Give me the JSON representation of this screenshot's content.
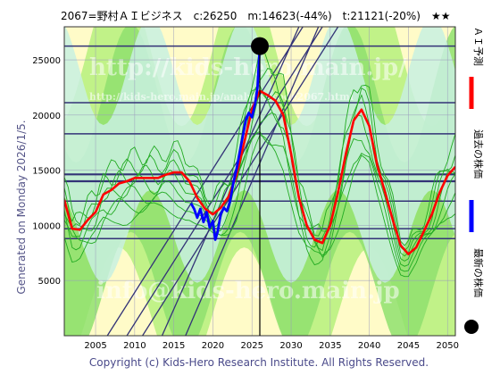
{
  "header": {
    "title": "2067=野村ＡＩビジネス　c:26250　m:14623(-44%)　t:21121(-20%)　★★"
  },
  "side_note": "Generated on Monday 2026/1/5.",
  "footer": "Copyright (c) Kids-Hero Research Institute. All Rights Reserved.",
  "watermarks": [
    "http://kids-hero.main.jp/",
    "http://kids-hero.main.jp/analysis/code2067.html",
    "info@kids-hero.main.jp"
  ],
  "legend": [
    {
      "label": "ＡＩ予測",
      "color": "#ff0000",
      "kind": "line"
    },
    {
      "label": "過去の株価",
      "color": "#0000ff",
      "kind": "line"
    },
    {
      "label": "最新の株価",
      "color": "#000000",
      "kind": "dot"
    }
  ],
  "colors": {
    "plot_bg": "#fffbc8",
    "band_light": "#b6f07c",
    "band_mid": "#8fe06e",
    "band_deep": "#c8f0e0",
    "prediction": "#ff0000",
    "history": "#0000ff",
    "levels": "#333377",
    "diagonals": "#333377",
    "ensemble": "#22aa22"
  },
  "chart_data": {
    "type": "line",
    "xlim": [
      2001,
      2051
    ],
    "ylim": [
      0,
      28000
    ],
    "x_ticks": [
      2005,
      2010,
      2015,
      2020,
      2025,
      2030,
      2035,
      2040,
      2045,
      2050
    ],
    "y_ticks": [
      5000,
      10000,
      15000,
      20000,
      25000
    ],
    "current": {
      "year": 2026.0,
      "price": 26250
    },
    "horizontal_levels": [
      26250,
      21121,
      18300,
      14623,
      14000,
      12200,
      9700,
      8800
    ],
    "diagonal_trendlines": [
      {
        "points": [
          [
            2006.5,
            0
          ],
          [
            2031.5,
            28000
          ]
        ]
      },
      {
        "points": [
          [
            2009.0,
            0
          ],
          [
            2034.0,
            28000
          ]
        ]
      },
      {
        "points": [
          [
            2011.0,
            0
          ],
          [
            2036.0,
            28000
          ]
        ]
      },
      {
        "points": [
          [
            2013.5,
            0
          ],
          [
            2031.0,
            28000
          ]
        ]
      },
      {
        "points": [
          [
            2016.5,
            0
          ],
          [
            2033.5,
            28000
          ]
        ]
      }
    ],
    "series": [
      {
        "name": "ＡＩ予測",
        "x": [
          2001,
          2002,
          2003,
          2004,
          2005,
          2006,
          2007,
          2008,
          2009,
          2010,
          2011,
          2012,
          2013,
          2014,
          2015,
          2016,
          2017,
          2018,
          2019,
          2020,
          2021,
          2022,
          2023,
          2024,
          2025,
          2026,
          2027,
          2028,
          2029,
          2030,
          2031,
          2032,
          2033,
          2034,
          2035,
          2036,
          2037,
          2038,
          2039,
          2040,
          2041,
          2042,
          2043,
          2044,
          2045,
          2046,
          2047,
          2048,
          2049,
          2050,
          2051
        ],
        "y": [
          12300,
          9700,
          9600,
          10500,
          11200,
          12800,
          13200,
          13800,
          14000,
          14300,
          14300,
          14300,
          14300,
          14600,
          14800,
          14800,
          14000,
          12500,
          11500,
          11000,
          11600,
          12600,
          14500,
          17500,
          20500,
          22200,
          21800,
          21300,
          20000,
          16500,
          12500,
          10000,
          8700,
          8400,
          10000,
          13000,
          16500,
          19500,
          20500,
          19000,
          15500,
          13000,
          10500,
          8200,
          7400,
          8000,
          9500,
          11000,
          13000,
          14500,
          15300
        ]
      },
      {
        "name": "過去の株価",
        "x": [
          2017.2,
          2017.6,
          2018.0,
          2018.4,
          2018.8,
          2019.2,
          2019.6,
          2020.0,
          2020.3,
          2020.6,
          2021.0,
          2021.4,
          2021.8,
          2022.2,
          2022.6,
          2023.0,
          2023.4,
          2023.8,
          2024.2,
          2024.6,
          2025.0,
          2025.4,
          2025.7,
          2026.0
        ],
        "y": [
          12000,
          11500,
          10700,
          11500,
          10300,
          11200,
          9800,
          10400,
          8700,
          9400,
          11000,
          11600,
          11300,
          12200,
          13800,
          15000,
          16500,
          18000,
          19500,
          20200,
          19800,
          21000,
          22500,
          26250
        ]
      }
    ]
  }
}
